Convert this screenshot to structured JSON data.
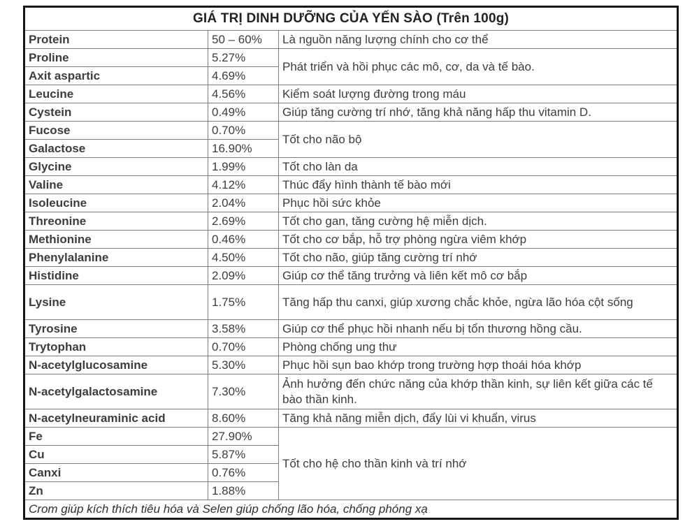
{
  "table": {
    "title": "GIÁ TRỊ DINH DƯỠNG CỦA YẾN SÀO (Trên 100g)",
    "footer": "Crom giúp kích thích tiêu hóa và Selen giúp chống lão hóa, chống phóng xạ",
    "rows": [
      {
        "name": "Protein",
        "value": "50 – 60%",
        "desc": "Là nguồn năng lượng chính cho cơ thể",
        "desc_rowspan": 1
      },
      {
        "name": "Proline",
        "value": "5.27%",
        "desc": "Phát triển và hồi phục các mô, cơ, da và tế bào.",
        "desc_rowspan": 2
      },
      {
        "name": "Axit aspartic",
        "value": "4.69%"
      },
      {
        "name": "Leucine",
        "value": "4.56%",
        "desc": "Kiểm soát lượng đường trong máu",
        "desc_rowspan": 1
      },
      {
        "name": "Cystein",
        "value": "0.49%",
        "desc": "Giúp tăng cường trí nhớ, tăng khả năng hấp thu vitamin D.",
        "desc_rowspan": 1
      },
      {
        "name": "Fucose",
        "value": "0.70%",
        "desc": "Tốt cho não bộ",
        "desc_rowspan": 2
      },
      {
        "name": "Galactose",
        "value": "16.90%"
      },
      {
        "name": "Glycine",
        "value": "1.99%",
        "desc": "Tốt cho làn da",
        "desc_rowspan": 1
      },
      {
        "name": "Valine",
        "value": "4.12%",
        "desc": "Thúc đẩy hình thành tế bào mới",
        "desc_rowspan": 1
      },
      {
        "name": "Isoleucine",
        "value": "2.04%",
        "desc": "Phục hồi sức khỏe",
        "desc_rowspan": 1
      },
      {
        "name": "Threonine",
        "value": "2.69%",
        "desc": "Tốt cho gan, tăng cường hệ miễn dịch.",
        "desc_rowspan": 1
      },
      {
        "name": "Methionine",
        "value": "0.46%",
        "desc": "Tốt cho cơ bắp, hỗ trợ phòng ngừa viêm khớp",
        "desc_rowspan": 1
      },
      {
        "name": "Phenylalanine",
        "value": "4.50%",
        "desc": "Tốt cho não, giúp tăng cường trí nhớ",
        "desc_rowspan": 1
      },
      {
        "name": "Histidine",
        "value": "2.09%",
        "desc": "Giúp cơ thể tăng trưởng và liên kết mô cơ bắp",
        "desc_rowspan": 1
      },
      {
        "name": "Lysine",
        "value": "1.75%",
        "desc": "Tăng hấp thu canxi, giúp xương chắc khỏe, ngừa lão hóa cột sống",
        "desc_rowspan": 1,
        "tall": true
      },
      {
        "name": "Tyrosine",
        "value": "3.58%",
        "desc": "Giúp cơ thể phục hồi nhanh nếu bị tổn thương hồng cầu.",
        "desc_rowspan": 1
      },
      {
        "name": "Trytophan",
        "value": "0.70%",
        "desc": "Phòng chống ung thư",
        "desc_rowspan": 1
      },
      {
        "name": "N-acetylglucosamine",
        "value": "5.30%",
        "desc": "Phục hồi sụn bao khớp trong trường hợp thoái hóa khớp",
        "desc_rowspan": 1
      },
      {
        "name": "N-acetylgalactosamine",
        "value": "7.30%",
        "desc": "Ảnh hưởng đến chức năng của khớp thần kinh, sự liên kết giữa các tế bào thần kinh.",
        "desc_rowspan": 1,
        "tall": true
      },
      {
        "name": "N-acetylneuraminic acid",
        "value": "8.60%",
        "desc": "Tăng khả năng miễn dịch, đẩy lùi vi khuẩn, virus",
        "desc_rowspan": 1
      },
      {
        "name": "Fe",
        "value": "27.90%",
        "desc": "Tốt cho hệ cho thần kinh và trí nhớ",
        "desc_rowspan": 4
      },
      {
        "name": "Cu",
        "value": "5.87%"
      },
      {
        "name": "Canxi",
        "value": "0.76%"
      },
      {
        "name": "Zn",
        "value": "1.88%"
      }
    ]
  }
}
